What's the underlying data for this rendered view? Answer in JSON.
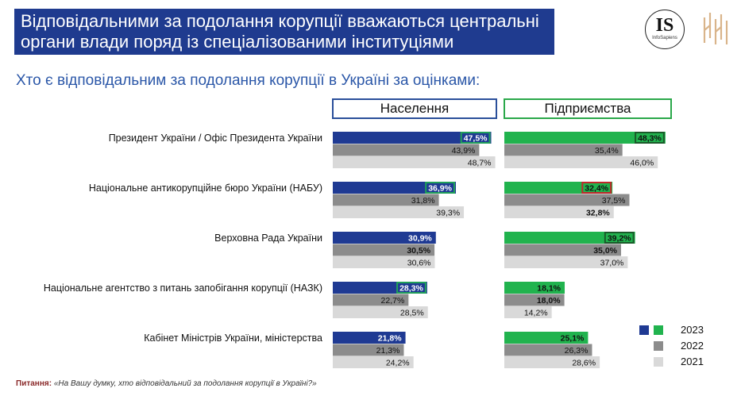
{
  "header": {
    "title_line1": "Відповідальними за подолання корупції вважаються центральні",
    "title_line2": "органи влади поряд із спеціалізованими інституціями",
    "logo_main": "IS",
    "logo_sub": "InfoSapiens"
  },
  "subtitle": "Хто є відповідальним за подолання корупції в Україні за оцінками:",
  "panels": {
    "population": "Населення",
    "business": "Підприємства"
  },
  "colors": {
    "pop2023": "#1f3a93",
    "biz2023": "#21b34e",
    "y2022": "#8c8c8c",
    "y2021": "#d9d9d9",
    "highlight_green": "#21a05a",
    "highlight_dark": "#1a5a2a",
    "highlight_red": "#c0282a"
  },
  "chart_data": {
    "type": "bar",
    "orientation": "horizontal",
    "value_unit": "%",
    "categories": [
      "Президент України / Офіс Президента України",
      "Національне антикорупційне бюро України (НАБУ)",
      "Верховна Рада України",
      "Національне агентство з питань запобігання корупції (НАЗК)",
      "Кабінет Міністрів України, міністерства"
    ],
    "panels": [
      {
        "name": "Населення",
        "series": [
          {
            "name": "2023",
            "values": [
              47.5,
              36.9,
              30.9,
              28.3,
              21.8
            ],
            "labels": [
              "47,5%",
              "36,9%",
              "30,9%",
              "28,3%",
              "21,8%"
            ]
          },
          {
            "name": "2022",
            "values": [
              43.9,
              31.8,
              30.5,
              22.7,
              21.3
            ],
            "labels": [
              "43,9%",
              "31,8%",
              "30,5%",
              "22,7%",
              "21,3%"
            ]
          },
          {
            "name": "2021",
            "values": [
              48.7,
              39.3,
              30.6,
              28.5,
              24.2
            ],
            "labels": [
              "48,7%",
              "39,3%",
              "30,6%",
              "28,5%",
              "24,2%"
            ]
          }
        ]
      },
      {
        "name": "Підприємства",
        "series": [
          {
            "name": "2023",
            "values": [
              48.3,
              32.4,
              39.2,
              18.1,
              25.1
            ],
            "labels": [
              "48,3%",
              "32,4%",
              "39,2%",
              "18,1%",
              "25,1%"
            ]
          },
          {
            "name": "2022",
            "values": [
              35.4,
              37.5,
              35.0,
              18.0,
              26.3
            ],
            "labels": [
              "35,4%",
              "37,5%",
              "35,0%",
              "18,0%",
              "26,3%"
            ]
          },
          {
            "name": "2021",
            "values": [
              46.0,
              32.8,
              37.0,
              14.2,
              28.6
            ],
            "labels": [
              "46,0%",
              "32,8%",
              "37,0%",
              "14,2%",
              "28,6%"
            ]
          }
        ]
      }
    ],
    "highlights": [
      {
        "panel": "Населення",
        "category": 0,
        "series": "2023",
        "style": "green"
      },
      {
        "panel": "Населення",
        "category": 1,
        "series": "2023",
        "style": "green"
      },
      {
        "panel": "Населення",
        "category": 3,
        "series": "2023",
        "style": "green"
      },
      {
        "panel": "Підприємства",
        "category": 0,
        "series": "2023",
        "style": "dark"
      },
      {
        "panel": "Підприємства",
        "category": 1,
        "series": "2023",
        "style": "red"
      },
      {
        "panel": "Підприємства",
        "category": 2,
        "series": "2023",
        "style": "dark"
      }
    ],
    "bold_labels": [
      {
        "panel": "Населення",
        "category": 2,
        "series": "2022"
      },
      {
        "panel": "Підприємства",
        "category": 1,
        "series": "2021"
      },
      {
        "panel": "Підприємства",
        "category": 2,
        "series": "2022"
      },
      {
        "panel": "Підприємства",
        "category": 3,
        "series": "2022"
      }
    ],
    "legend": [
      "2023",
      "2022",
      "2021"
    ],
    "legend_position": "bottom-right"
  },
  "footnote": {
    "label": "Питання:",
    "text": "«На Вашу думку, хто відповідальний за подолання корупції в Україні?»"
  }
}
